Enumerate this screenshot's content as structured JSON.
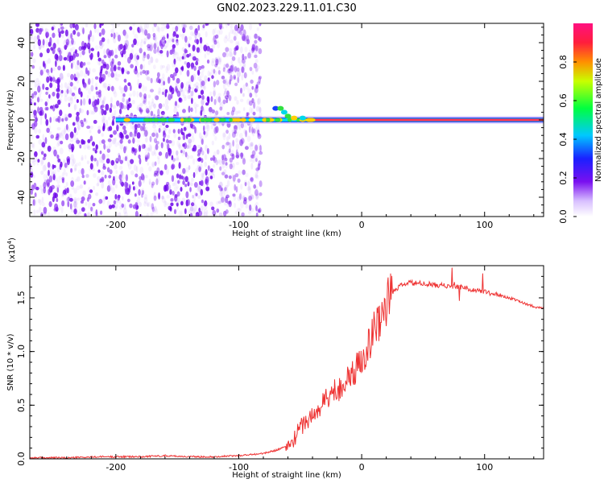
{
  "title": "GN02.2023.229.11.01.C30",
  "colors": {
    "snr_line": "#ee3333",
    "spectrogram_speckle": "#7a1cf0",
    "band_core": "#ff2a55",
    "band_edge": "#1a40ff"
  },
  "chart_data": [
    {
      "type": "heatmap",
      "name": "spectrogram",
      "xlabel": "Height of straight line (km)",
      "ylabel": "Frequency (Hz)",
      "xlim": [
        -270,
        148
      ],
      "ylim": [
        -50,
        50
      ],
      "xticks": [
        -200,
        -100,
        0,
        100
      ],
      "xtick_labels": [
        "-200",
        "-100",
        "0",
        "100"
      ],
      "yticks": [
        -40,
        -20,
        0,
        20,
        40
      ],
      "ytick_labels": [
        "-40",
        "-20",
        "0",
        "20",
        "40"
      ],
      "colorbar": {
        "label": "Normalized spectral amplitude",
        "range": [
          0,
          1
        ],
        "ticks": [
          0,
          0.2,
          0.4,
          0.6,
          0.8
        ],
        "tick_labels": [
          "0.0",
          "0.2",
          "0.4",
          "0.6",
          "0.8"
        ],
        "colormap": "rainbow (white-purple-blue-cyan-green-yellow-red-magenta)"
      },
      "features": [
        {
          "description": "broadband noise speckle",
          "x_range": [
            -270,
            -82
          ],
          "y_range": [
            -50,
            50
          ],
          "amplitude": 0.2
        },
        {
          "description": "narrow tonal band",
          "x_range": [
            -200,
            148
          ],
          "frequency_hz": 0,
          "amplitude": 0.85
        },
        {
          "description": "band perturbation",
          "x_range": [
            -75,
            -35
          ],
          "frequency_hz_range": [
            0,
            7
          ]
        }
      ]
    },
    {
      "type": "line",
      "name": "snr",
      "xlabel": "Height of straight line (km)",
      "ylabel": "SNR (10 * v/v)",
      "multiplier_label": "(x10",
      "multiplier_exp": "4",
      "xlim": [
        -270,
        148
      ],
      "ylim": [
        0,
        1.8
      ],
      "xticks": [
        -200,
        -100,
        0,
        100
      ],
      "xtick_labels": [
        "-200",
        "-100",
        "0",
        "100"
      ],
      "yticks": [
        0,
        0.5,
        1.0,
        1.5
      ],
      "ytick_labels": [
        "0.0",
        "0.5",
        "1.0",
        "1.5"
      ],
      "series_x": [
        -270,
        -240,
        -210,
        -180,
        -160,
        -140,
        -120,
        -100,
        -90,
        -80,
        -70,
        -60,
        -55,
        -50,
        -45,
        -40,
        -35,
        -30,
        -20,
        -10,
        -5,
        0,
        5,
        10,
        15,
        20,
        25,
        30,
        35,
        40,
        50,
        60,
        70,
        80,
        90,
        100,
        110,
        120,
        130,
        140,
        148
      ],
      "series_y": [
        0.01,
        0.01,
        0.02,
        0.02,
        0.03,
        0.02,
        0.02,
        0.03,
        0.04,
        0.05,
        0.08,
        0.12,
        0.18,
        0.3,
        0.35,
        0.4,
        0.45,
        0.55,
        0.65,
        0.75,
        0.82,
        0.95,
        1.05,
        1.2,
        1.32,
        1.45,
        1.55,
        1.6,
        1.63,
        1.64,
        1.63,
        1.62,
        1.61,
        1.6,
        1.58,
        1.56,
        1.53,
        1.5,
        1.46,
        1.42,
        1.4
      ]
    }
  ]
}
